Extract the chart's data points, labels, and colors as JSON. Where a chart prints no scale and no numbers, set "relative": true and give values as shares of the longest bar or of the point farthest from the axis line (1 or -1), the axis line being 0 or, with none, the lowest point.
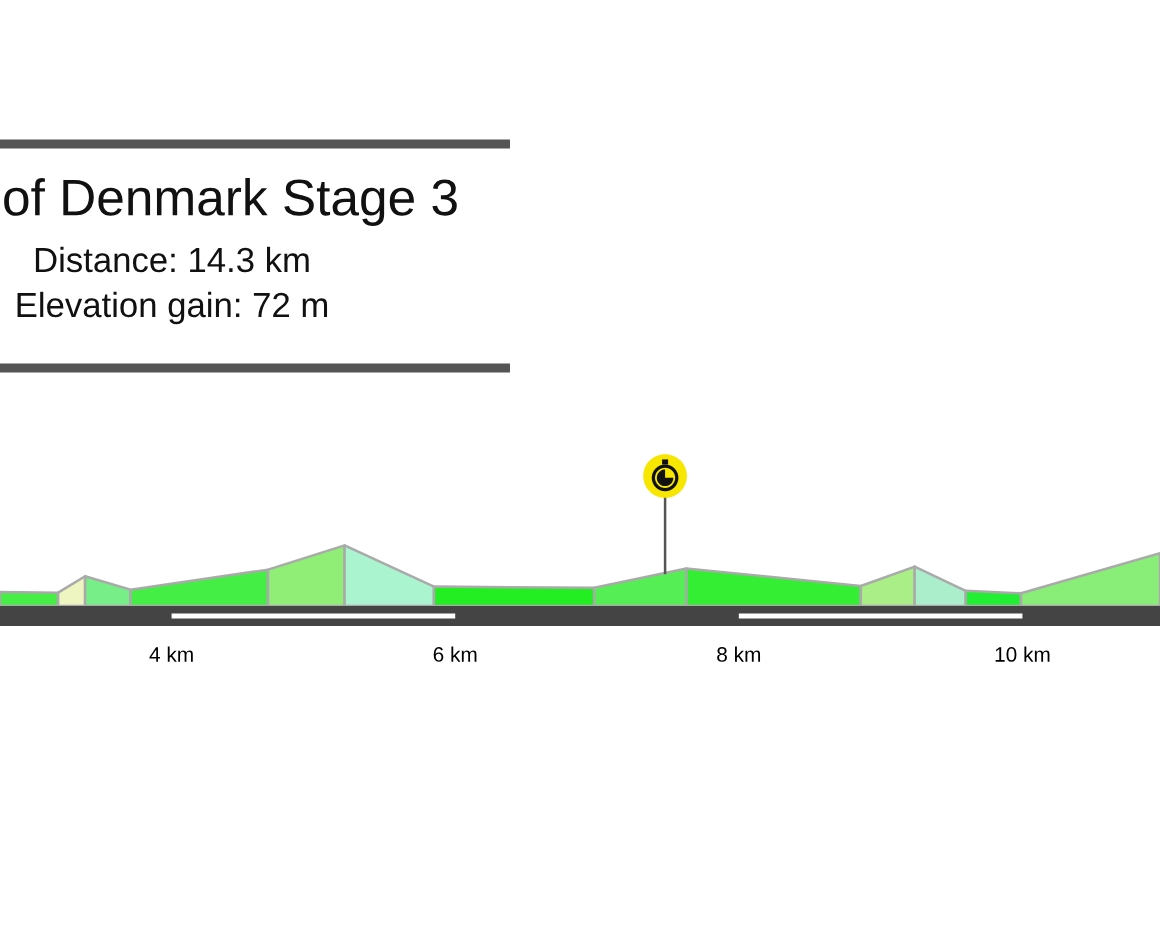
{
  "chart_data": {
    "type": "area",
    "title": "of Denmark Stage 3",
    "subtitle": "Distance: 14.3 km",
    "annotations": [
      "Elevation gain: 72 m"
    ],
    "relative": true,
    "tick_labels": "x",
    "xlim": [
      2.79,
      10.97
    ],
    "xticks": [
      {
        "value": 4,
        "label": "4 km"
      },
      {
        "value": 6,
        "label": "6 km"
      },
      {
        "value": 8,
        "label": "8 km"
      },
      {
        "value": 10,
        "label": "10 km"
      }
    ],
    "ref_lines": [
      {
        "axis": "x",
        "value": 7.48,
        "color": "#555555"
      }
    ],
    "series": [
      {
        "x": [
          2.79,
          3.2
        ],
        "values": [
          0.23,
          0.22
        ],
        "color": "#46ee46"
      },
      {
        "x": [
          3.2,
          3.39
        ],
        "values": [
          0.22,
          0.49
        ],
        "color": "#eef5c0"
      },
      {
        "x": [
          3.39,
          3.71
        ],
        "values": [
          0.49,
          0.27
        ],
        "color": "#77ee88"
      },
      {
        "x": [
          3.71,
          4.68
        ],
        "values": [
          0.27,
          0.6
        ],
        "color": "#44ee44"
      },
      {
        "x": [
          4.68,
          5.22
        ],
        "values": [
          0.6,
          1.0
        ],
        "color": "#90ee77"
      },
      {
        "x": [
          5.22,
          5.85
        ],
        "values": [
          1.0,
          0.32
        ],
        "color": "#aaf5d0"
      },
      {
        "x": [
          5.85,
          6.98
        ],
        "values": [
          0.32,
          0.3
        ],
        "color": "#22ee22"
      },
      {
        "x": [
          6.98,
          7.63
        ],
        "values": [
          0.3,
          0.62
        ],
        "color": "#55ee55"
      },
      {
        "x": [
          7.63,
          8.86
        ],
        "values": [
          0.62,
          0.33
        ],
        "color": "#33ee33"
      },
      {
        "x": [
          8.86,
          9.24
        ],
        "values": [
          0.33,
          0.65
        ],
        "color": "#aaee88"
      },
      {
        "x": [
          9.24,
          9.6
        ],
        "values": [
          0.65,
          0.25
        ],
        "color": "#aaeecc"
      },
      {
        "x": [
          9.6,
          9.99
        ],
        "values": [
          0.25,
          0.21
        ],
        "color": "#22ee33"
      },
      {
        "x": [
          9.99,
          10.97
        ],
        "values": [
          0.21,
          0.87
        ],
        "color": "#88ee77"
      }
    ]
  }
}
